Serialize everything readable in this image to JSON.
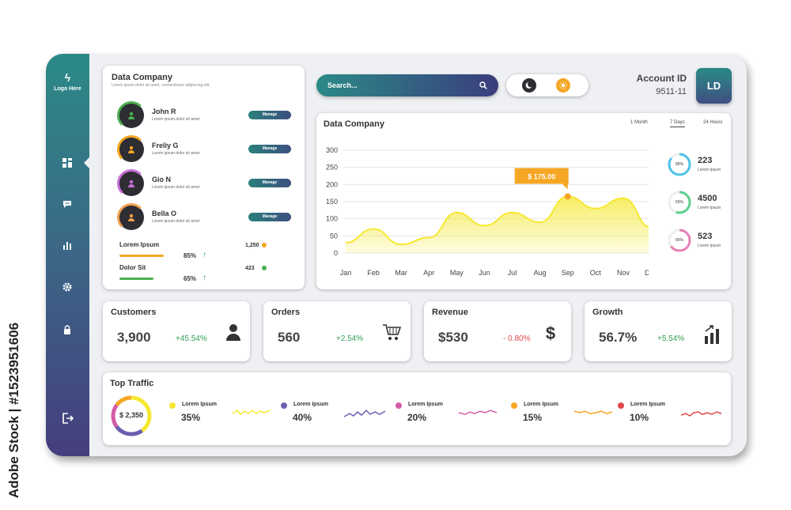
{
  "watermark": "Adobe Stock | #1523951606",
  "logo": {
    "glyph": "ϟ",
    "label": "Logo Here"
  },
  "sidebar_icons": [
    "dashboard-icon",
    "chat-icon",
    "bar-chart-icon",
    "gear-icon",
    "lock-icon",
    "logout-icon"
  ],
  "contacts": {
    "title": "Data Company",
    "subtitle": "Lorem ipsum dolor sit amet, consectetuer adipiscing elit.",
    "people": [
      {
        "name": "John R",
        "desc": "Lorem ipsum dolor sit amet",
        "color": "#4caf50",
        "button": "Manage"
      },
      {
        "name": "Freliy G",
        "desc": "Lorem ipsum dolor sit amet",
        "color": "#f5a623",
        "button": "Manage"
      },
      {
        "name": "Gio N",
        "desc": "Lorem ipsum dolor sit amet",
        "color": "#c86dd7",
        "button": "Manage"
      },
      {
        "name": "Bella O",
        "desc": "Lorem ipsum dolor sit amet",
        "color": "#f0a050",
        "button": "Manage"
      }
    ],
    "metrics": [
      {
        "label": "Lorem Ipsum",
        "percent": "85%",
        "bar_color": "#f5a623",
        "fill": 0.85,
        "count": "1,250",
        "dot_color": "#f5a623"
      },
      {
        "label": "Dolor Sit",
        "percent": "65%",
        "bar_color": "#4caf50",
        "fill": 0.65,
        "count": "423",
        "dot_color": "#4caf50"
      }
    ]
  },
  "search": {
    "placeholder": "Search..."
  },
  "account": {
    "label": "Account ID",
    "value": "9511-11",
    "initials": "LD"
  },
  "chart_panel": {
    "title": "Data Company",
    "ranges": [
      "1 Month",
      "7 Days",
      "24 Hours"
    ],
    "active_range": "7 Days",
    "tooltip": "$ 175.00",
    "donuts": [
      {
        "percent": "85%",
        "fill": 0.85,
        "value": "223",
        "caption": "Lorem Ipsum",
        "color": "#4fc3e8"
      },
      {
        "percent": "55%",
        "fill": 0.55,
        "value": "4500",
        "caption": "Lorem Ipsum",
        "color": "#5fcf8f"
      },
      {
        "percent": "65%",
        "fill": 0.65,
        "value": "523",
        "caption": "Lorem Ipsum",
        "color": "#e87fb8"
      }
    ]
  },
  "chart_data": {
    "type": "area",
    "categories": [
      "Jan",
      "Feb",
      "Mar",
      "Apr",
      "May",
      "Jun",
      "Jul",
      "Aug",
      "Sep",
      "Oct",
      "Nov",
      "Dec"
    ],
    "values": [
      30,
      70,
      25,
      45,
      118,
      80,
      118,
      90,
      165,
      130,
      160,
      75
    ],
    "yticks": [
      0,
      50,
      100,
      150,
      200,
      250,
      300
    ],
    "ylim": [
      0,
      300
    ],
    "highlight_index": 8,
    "color": "#f5e830"
  },
  "stats": [
    {
      "title": "Customers",
      "value": "3,900",
      "change": "+45.54%",
      "change_color": "#2e9e4f",
      "icon": "user-icon"
    },
    {
      "title": "Orders",
      "value": "560",
      "change": "+2.54%",
      "change_color": "#2e9e4f",
      "icon": "cart-icon"
    },
    {
      "title": "Revenue",
      "value": "$530",
      "change": "- 0.80%",
      "change_color": "#e04848",
      "icon": "dollar-icon"
    },
    {
      "title": "Growth",
      "value": "56.7%",
      "change": "+5.54%",
      "change_color": "#2e9e4f",
      "icon": "growth-chart-icon"
    }
  ],
  "traffic": {
    "title": "Top Traffic",
    "total": "$ 2,350",
    "items": [
      {
        "label": "Lorem Ipsum",
        "percent": "35%",
        "color": "#f5e830"
      },
      {
        "label": "Lorem Ipsum",
        "percent": "40%",
        "color": "#6a5fb0"
      },
      {
        "label": "Lorem Ipsum",
        "percent": "20%",
        "color": "#d35ca8"
      },
      {
        "label": "Lorem Ipsum",
        "percent": "15%",
        "color": "#f5a623"
      },
      {
        "label": "Lorem Ipsum",
        "percent": "10%",
        "color": "#e04848"
      }
    ]
  }
}
